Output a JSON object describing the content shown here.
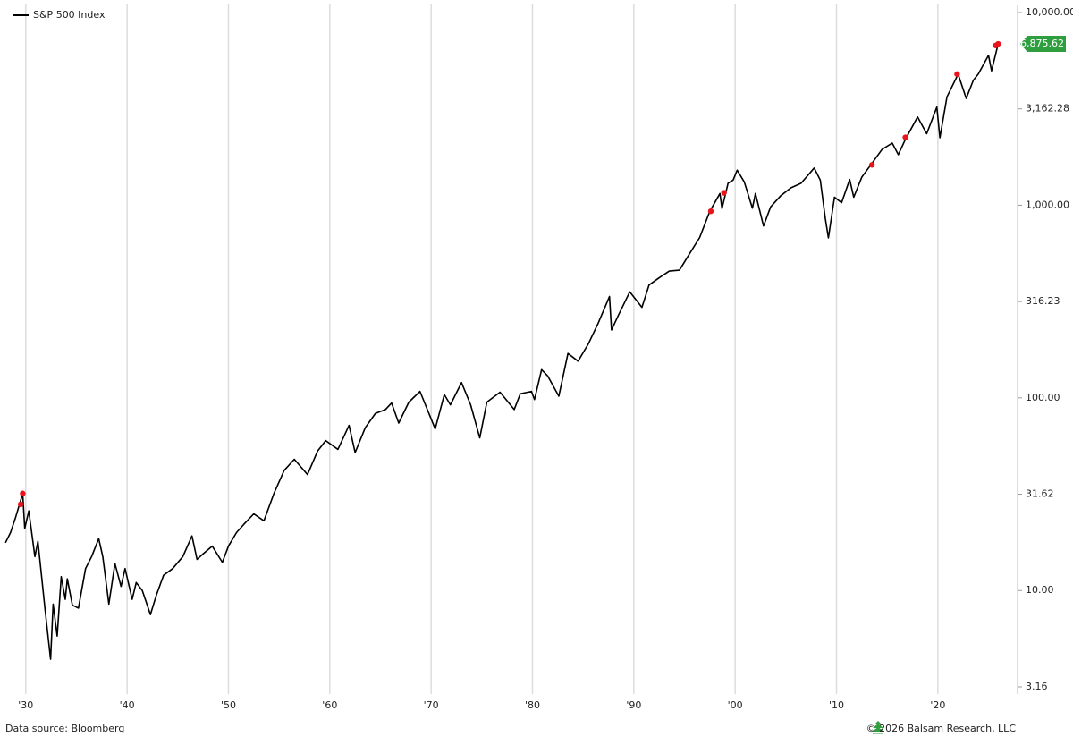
{
  "chart_data": {
    "type": "line",
    "log_y": true,
    "grid": true,
    "xlim": [
      1927.9,
      2027.6
    ],
    "ylim": [
      3.16,
      10000
    ],
    "xticks": [
      {
        "value": 1930,
        "label": "'30"
      },
      {
        "value": 1940,
        "label": "'40"
      },
      {
        "value": 1950,
        "label": "'50"
      },
      {
        "value": 1960,
        "label": "'60"
      },
      {
        "value": 1970,
        "label": "'70"
      },
      {
        "value": 1980,
        "label": "'80"
      },
      {
        "value": 1990,
        "label": "'90"
      },
      {
        "value": 2000,
        "label": "'00"
      },
      {
        "value": 2010,
        "label": "'10"
      },
      {
        "value": 2020,
        "label": "'20"
      }
    ],
    "yticks": [
      {
        "value": 10000,
        "label": "10,000.00"
      },
      {
        "value": 3162.28,
        "label": "3,162.28"
      },
      {
        "value": 1000,
        "label": "1,000.00"
      },
      {
        "value": 316.23,
        "label": "316.23"
      },
      {
        "value": 100,
        "label": "100.00"
      },
      {
        "value": 31.62,
        "label": "31.62"
      },
      {
        "value": 10,
        "label": "10.00"
      },
      {
        "value": 3.16,
        "label": "3.16"
      }
    ],
    "x": [
      1928.0,
      1928.5,
      1929.0,
      1929.7,
      1929.9,
      1930.3,
      1930.9,
      1931.2,
      1931.9,
      1932.45,
      1932.7,
      1933.1,
      1933.5,
      1933.9,
      1934.1,
      1934.6,
      1935.2,
      1935.9,
      1936.5,
      1937.2,
      1937.6,
      1938.2,
      1938.8,
      1939.4,
      1939.8,
      1940.5,
      1940.9,
      1941.5,
      1942.3,
      1942.9,
      1943.6,
      1944.5,
      1945.5,
      1946.4,
      1946.9,
      1947.5,
      1948.4,
      1949.4,
      1950.0,
      1950.8,
      1951.5,
      1952.5,
      1953.5,
      1954.5,
      1955.5,
      1956.5,
      1957.8,
      1958.8,
      1959.6,
      1960.8,
      1961.9,
      1962.5,
      1963.5,
      1964.5,
      1965.5,
      1966.1,
      1966.8,
      1967.8,
      1968.9,
      1970.4,
      1971.3,
      1971.9,
      1973.0,
      1973.9,
      1974.8,
      1975.5,
      1976.8,
      1978.2,
      1978.8,
      1979.9,
      1980.2,
      1980.9,
      1981.5,
      1982.6,
      1983.5,
      1984.5,
      1985.5,
      1986.5,
      1987.6,
      1987.8,
      1988.5,
      1989.6,
      1990.8,
      1991.5,
      1992.5,
      1993.5,
      1994.5,
      1995.5,
      1996.5,
      1997.5,
      1998.5,
      1998.7,
      1999.3,
      1999.8,
      2000.2,
      2000.9,
      2001.7,
      2002.0,
      2002.8,
      2003.5,
      2004.5,
      2005.5,
      2006.5,
      2007.8,
      2008.4,
      2008.9,
      2009.2,
      2009.8,
      2010.5,
      2011.3,
      2011.7,
      2012.5,
      2013.5,
      2014.5,
      2015.5,
      2016.1,
      2016.8,
      2018.0,
      2018.9,
      2019.9,
      2020.2,
      2020.9,
      2022.0,
      2022.8,
      2023.5,
      2024.0,
      2025.0,
      2025.3,
      2025.95
    ],
    "series": [
      {
        "name": "S&P 500 Index",
        "color": "#000000",
        "values": [
          17.7,
          20,
          24,
          31.9,
          21,
          25.9,
          15,
          18,
          8,
          4.4,
          8.5,
          5.8,
          11.8,
          9,
          11.5,
          8.4,
          8.1,
          13,
          15,
          18.6,
          15,
          8.5,
          13.8,
          10.5,
          13,
          9,
          11,
          10,
          7.5,
          9.5,
          12,
          13,
          15,
          19.2,
          14.5,
          15.5,
          17,
          14,
          17,
          20,
          22,
          25,
          23,
          32,
          42,
          48,
          40,
          53,
          60,
          54,
          72,
          52,
          70,
          83,
          87,
          94,
          74,
          95,
          108,
          69,
          104,
          92,
          120,
          92,
          62,
          95,
          107,
          87,
          105,
          108,
          98,
          140,
          130,
          102,
          170,
          155,
          190,
          245,
          336,
          225,
          270,
          355,
          295,
          385,
          420,
          455,
          460,
          560,
          680,
          930,
          1150,
          960,
          1300,
          1350,
          1520,
          1320,
          965,
          1150,
          780,
          980,
          1120,
          1230,
          1300,
          1560,
          1350,
          850,
          677,
          1100,
          1030,
          1360,
          1100,
          1400,
          1650,
          1950,
          2100,
          1830,
          2200,
          2870,
          2350,
          3230,
          2240,
          3650,
          4790,
          3580,
          4450,
          4800,
          6000,
          4980,
          6875.62
        ]
      }
    ],
    "highlights": {
      "color": "#e8141b",
      "x": [
        1929.5,
        1929.7,
        1997.6,
        1998.9,
        2013.5,
        2016.8,
        2021.9,
        2025.7,
        2025.95
      ],
      "values": [
        28,
        31.9,
        930,
        1160,
        1620,
        2250,
        4790,
        6750,
        6875.62
      ]
    },
    "last_label": {
      "value": 6875.62,
      "label": "6,875.62",
      "color": "#2e9e3e"
    },
    "source": "Data source: Bloomberg",
    "copyright": "© 2026 Balsam Research, LLC"
  }
}
